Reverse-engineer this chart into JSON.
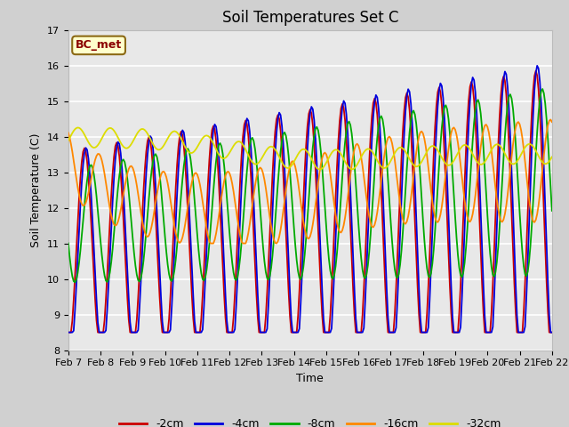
{
  "title": "Soil Temperatures Set C",
  "xlabel": "Time",
  "ylabel": "Soil Temperature (C)",
  "ylim": [
    8.0,
    17.0
  ],
  "yticks": [
    8.0,
    9.0,
    10.0,
    11.0,
    12.0,
    13.0,
    14.0,
    15.0,
    16.0,
    17.0
  ],
  "bg_color_fig": "#d0d0d0",
  "bg_color_ax": "#e8e8e8",
  "legend_label": "BC_met",
  "series_colors": {
    "-2cm": "#cc0000",
    "-4cm": "#0000dd",
    "-8cm": "#00aa00",
    "-16cm": "#ff8800",
    "-32cm": "#dddd00"
  },
  "x_labels": [
    "Feb 7",
    "Feb 8",
    "Feb 9",
    "Feb 10",
    "Feb 11",
    "Feb 12",
    "Feb 13",
    "Feb 14",
    "Feb 15",
    "Feb 16",
    "Feb 17",
    "Feb 18",
    "Feb 19",
    "Feb 20",
    "Feb 21",
    "Feb 22"
  ],
  "line_width": 1.3,
  "title_fontsize": 12,
  "label_fontsize": 9,
  "tick_fontsize": 8,
  "legend_fontsize": 9
}
